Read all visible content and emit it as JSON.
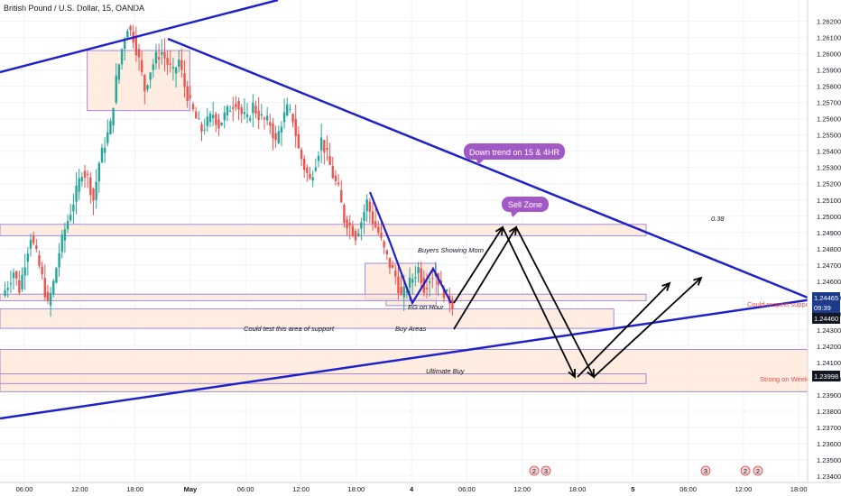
{
  "title": "British Pound / U.S. Dollar, 15, OANDA",
  "colors": {
    "up": "#26a69a",
    "down": "#ef5350",
    "trend": "#1e22c8",
    "zone_fill": "#fde7d6",
    "zone_border": "#a58ad6",
    "tag_purple": "#a259c6",
    "price_tag": "#1e3a8a"
  },
  "chart_data": {
    "type": "candlestick",
    "symbol": "GBPUSD",
    "timeframe": "15",
    "ylim": [
      1.234,
      1.2627
    ],
    "y_ticks": [
      "1.26200",
      "1.26100",
      "1.26000",
      "1.25900",
      "1.25800",
      "1.25700",
      "1.25600",
      "1.25500",
      "1.25400",
      "1.25300",
      "1.25200",
      "1.25100",
      "1.25000",
      "1.24900",
      "1.24800",
      "1.24700",
      "1.24600",
      "1.24500",
      "1.24400",
      "1.24300",
      "1.24200",
      "1.24100",
      "1.24000",
      "1.23900",
      "1.23800",
      "1.23700",
      "1.23600",
      "1.23500",
      "1.23400"
    ],
    "x_ticks": [
      "06:00",
      "12:00",
      "18:00",
      "May",
      "06:00",
      "12:00",
      "18:00",
      "4",
      "06:00",
      "12:00",
      "18:00",
      "5",
      "06:00",
      "12:00",
      "18:00"
    ],
    "price_path": [
      1.2451,
      1.2458,
      1.2466,
      1.2455,
      1.2472,
      1.2488,
      1.2476,
      1.2462,
      1.2445,
      1.2459,
      1.2478,
      1.2492,
      1.2503,
      1.2515,
      1.2528,
      1.2524,
      1.251,
      1.2533,
      1.2545,
      1.2556,
      1.2584,
      1.2603,
      1.2617,
      1.261,
      1.2596,
      1.2578,
      1.259,
      1.2598,
      1.2601,
      1.2594,
      1.2588,
      1.2596,
      1.258,
      1.2569,
      1.256,
      1.2553,
      1.2558,
      1.2563,
      1.2556,
      1.2562,
      1.2567,
      1.2571,
      1.2563,
      1.2559,
      1.2568,
      1.2562,
      1.2559,
      1.2557,
      1.2545,
      1.2558,
      1.2566,
      1.256,
      1.2541,
      1.253,
      1.2522,
      1.2534,
      1.2547,
      1.2537,
      1.2525,
      1.2516,
      1.2498,
      1.2494,
      1.2488,
      1.2497,
      1.2509,
      1.2497,
      1.249,
      1.2479,
      1.247,
      1.2463,
      1.245,
      1.2456,
      1.2462,
      1.2468,
      1.2456,
      1.2462,
      1.2465,
      1.2456,
      1.2451,
      1.2446
    ],
    "last_price": "1.24465",
    "last_price_countdown": "09:39",
    "price_labels": [
      {
        "value": "1.24460"
      },
      {
        "value": "1.23998"
      }
    ],
    "zones": [
      {
        "name": "upper-box",
        "x": [
          0.108,
          0.235
        ],
        "y": [
          1.2602,
          1.2565
        ]
      },
      {
        "name": "sell-zone",
        "x": [
          0.0,
          0.8
        ],
        "y": [
          1.2495,
          1.2488
        ]
      },
      {
        "name": "buyers-box",
        "x": [
          0.452,
          0.54
        ],
        "y": [
          1.2471,
          1.2449
        ]
      },
      {
        "name": "mom-box",
        "x": [
          0.478,
          0.54
        ],
        "y": [
          1.2449,
          1.2445
        ]
      },
      {
        "name": "support-line-box",
        "x": [
          0.0,
          0.8
        ],
        "y": [
          1.2452,
          1.2448
        ]
      },
      {
        "name": "could-test-zone",
        "x": [
          0.0,
          0.76
        ],
        "y": [
          1.2443,
          1.2431
        ]
      },
      {
        "name": "ultimate-buy-zone",
        "x": [
          0.0,
          1.0
        ],
        "y": [
          1.2418,
          1.2392
        ]
      },
      {
        "name": "ultimate-buy-inner",
        "x": [
          0.0,
          0.8
        ],
        "y": [
          1.2403,
          1.2397
        ]
      }
    ],
    "annotations": {
      "down_trend": "Down trend on 15 & 4HR",
      "sell_zone": "Sell Zone",
      "fib": "0.38",
      "buyers_showing_mom": "Buyers Showing Mom",
      "eg_on_hour": "EG on Hour",
      "could_test": "Could test this area of support",
      "buy_areas": "Buy Areas",
      "ultimate_buy": "Ultimate Buy",
      "strong_weekly": "Strong on Weekly",
      "could_respect": "Could respect support"
    },
    "events": [
      "2",
      "3",
      "3",
      "2",
      "2"
    ]
  }
}
